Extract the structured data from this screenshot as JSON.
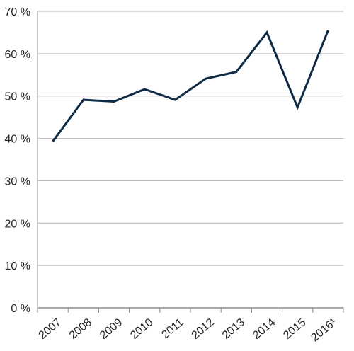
{
  "chart_data": {
    "type": "line",
    "categories": [
      "2007",
      "2008",
      "2009",
      "2010",
      "2011",
      "2012",
      "2013",
      "2014",
      "2015",
      "2016¹"
    ],
    "series": [
      {
        "values": [
          39.3,
          49.1,
          48.7,
          51.6,
          49.1,
          54.1,
          55.7,
          65.0,
          47.3,
          65.5
        ]
      }
    ],
    "y_ticks": [
      "0 %",
      "10 %",
      "20 %",
      "30 %",
      "40 %",
      "50 %",
      "60 %",
      "70 %"
    ],
    "ylim": [
      0,
      70
    ],
    "grid": true,
    "legend": "none",
    "colors": {
      "line": "#0f2a44",
      "grid": "#b3b3b3",
      "axis": "#8c8c8c"
    }
  }
}
